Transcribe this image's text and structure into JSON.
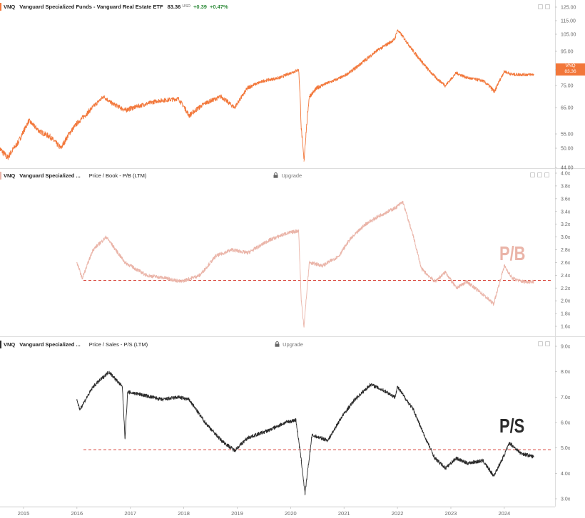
{
  "colors": {
    "price": "#f2773a",
    "pb": "#eab4a8",
    "ps": "#2a2a2a",
    "ref": "#d8463c",
    "grid": "#e8e8e8",
    "axis_text": "#666666",
    "divider": "#dddddd"
  },
  "panel1": {
    "ticker": "VNQ",
    "name": "Vanguard Specialized Funds - Vanguard Real Estate ETF",
    "price": "83.36",
    "currency": "USD",
    "change": "+0.39",
    "change_pct": "+0.47%",
    "badge_ticker": "VNQ",
    "badge_price": "83.36"
  },
  "panel2": {
    "ticker": "VNQ",
    "name": "Vanguard Specialized ...",
    "metric": "Price / Book - P/B (LTM)",
    "upgrade": "Upgrade",
    "overlay": "P/B"
  },
  "panel3": {
    "ticker": "VNQ",
    "name": "Vanguard Specialized ...",
    "metric": "Price / Sales - P/S (LTM)",
    "upgrade": "Upgrade",
    "overlay": "P/S"
  },
  "chart_data": [
    {
      "type": "line",
      "title": "Vanguard Specialized Funds - Vanguard Real Estate ETF",
      "series": [
        {
          "name": "VNQ",
          "x": [
            2014.55,
            2014.7,
            2014.9,
            2015.1,
            2015.3,
            2015.5,
            2015.7,
            2015.85,
            2016.0,
            2016.2,
            2016.5,
            2016.65,
            2016.9,
            2017.2,
            2017.5,
            2017.9,
            2018.1,
            2018.4,
            2018.7,
            2018.95,
            2019.2,
            2019.5,
            2019.8,
            2020.0,
            2020.15,
            2020.2,
            2020.25,
            2020.35,
            2020.5,
            2020.8,
            2021.0,
            2021.3,
            2021.6,
            2021.95,
            2022.0,
            2022.3,
            2022.55,
            2022.75,
            2022.9,
            2023.1,
            2023.3,
            2023.6,
            2023.82,
            2024.0,
            2024.15,
            2024.35,
            2024.55
          ],
          "y": [
            50,
            47,
            52,
            60,
            56,
            54,
            50,
            55,
            59,
            63,
            70,
            67,
            64,
            66,
            68,
            69,
            62,
            67,
            70,
            65,
            74,
            78,
            80,
            83,
            85,
            57,
            46,
            70,
            74,
            78,
            81,
            88,
            95,
            102,
            108,
            95,
            86,
            79,
            75,
            83,
            80,
            78,
            72,
            84,
            82,
            82,
            82
          ]
        }
      ],
      "ylim": [
        44,
        125
      ],
      "scale": "log",
      "y_ticks": [
        44,
        50,
        55,
        65,
        75,
        85,
        95,
        105,
        115,
        125
      ],
      "y_tick_labels": [
        "44.00",
        "50.00",
        "55.00",
        "65.00",
        "75.00",
        "85.00",
        "95.00",
        "105.00",
        "115.00",
        "125.00"
      ]
    },
    {
      "type": "line",
      "title": "Price / Book - P/B (LTM)",
      "series": [
        {
          "name": "VNQ",
          "x": [
            2016.0,
            2016.1,
            2016.3,
            2016.55,
            2016.9,
            2017.3,
            2017.7,
            2017.95,
            2018.3,
            2018.6,
            2018.9,
            2019.2,
            2019.6,
            2019.9,
            2020.15,
            2020.2,
            2020.25,
            2020.35,
            2020.6,
            2020.9,
            2021.1,
            2021.4,
            2021.7,
            2021.95,
            2022.1,
            2022.3,
            2022.45,
            2022.7,
            2022.9,
            2023.1,
            2023.3,
            2023.6,
            2023.8,
            2024.0,
            2024.15,
            2024.35,
            2024.55
          ],
          "y": [
            2.6,
            2.35,
            2.8,
            3.0,
            2.6,
            2.4,
            2.35,
            2.3,
            2.4,
            2.7,
            2.8,
            2.75,
            2.95,
            3.05,
            3.1,
            2.0,
            1.6,
            2.6,
            2.55,
            2.7,
            2.95,
            3.2,
            3.35,
            3.45,
            3.55,
            3.0,
            2.5,
            2.3,
            2.45,
            2.2,
            2.3,
            2.1,
            1.95,
            2.55,
            2.35,
            2.3,
            2.3
          ]
        }
      ],
      "reference_line": 2.32,
      "ylim": [
        1.6,
        4.0
      ],
      "y_ticks": [
        1.6,
        1.8,
        2.0,
        2.2,
        2.4,
        2.6,
        2.8,
        3.0,
        3.2,
        3.4,
        3.6,
        3.8,
        4.0
      ],
      "y_tick_labels": [
        "1.6x",
        "1.8x",
        "2.0x",
        "2.2x",
        "2.4x",
        "2.6x",
        "2.8x",
        "3.0x",
        "3.2x",
        "3.4x",
        "3.6x",
        "3.8x",
        "4.0x"
      ]
    },
    {
      "type": "line",
      "title": "Price / Sales - P/S (LTM)",
      "series": [
        {
          "name": "VNQ",
          "x": [
            2016.0,
            2016.05,
            2016.3,
            2016.6,
            2016.85,
            2016.9,
            2016.95,
            2017.2,
            2017.6,
            2017.9,
            2018.1,
            2018.4,
            2018.7,
            2018.95,
            2019.2,
            2019.6,
            2019.9,
            2020.1,
            2020.2,
            2020.27,
            2020.4,
            2020.7,
            2020.95,
            2021.2,
            2021.5,
            2021.8,
            2021.95,
            2022.0,
            2022.3,
            2022.5,
            2022.7,
            2022.9,
            2023.1,
            2023.3,
            2023.6,
            2023.8,
            2023.95,
            2024.1,
            2024.3,
            2024.55
          ],
          "y": [
            6.9,
            6.5,
            7.4,
            8.0,
            7.4,
            5.4,
            7.2,
            7.1,
            6.9,
            7.0,
            6.9,
            6.0,
            5.3,
            4.9,
            5.4,
            5.7,
            6.0,
            6.1,
            4.5,
            3.2,
            5.5,
            5.3,
            6.2,
            6.9,
            7.5,
            7.2,
            7.0,
            7.4,
            6.5,
            5.5,
            4.6,
            4.2,
            4.6,
            4.4,
            4.5,
            3.9,
            4.5,
            5.2,
            4.8,
            4.65
          ]
        }
      ],
      "reference_line": 4.93,
      "ylim": [
        3.0,
        9.0
      ],
      "y_ticks": [
        3,
        4,
        5,
        6,
        7,
        8,
        9
      ],
      "y_tick_labels": [
        "3.0x",
        "4.0x",
        "5.0x",
        "6.0x",
        "7.0x",
        "8.0x",
        "9.0x"
      ]
    }
  ],
  "x_axis": {
    "ticks": [
      2015,
      2016,
      2017,
      2018,
      2019,
      2020,
      2021,
      2022,
      2023,
      2024
    ],
    "labels": [
      "2015",
      "2016",
      "2017",
      "2018",
      "2019",
      "2020",
      "2021",
      "2022",
      "2023",
      "2024"
    ],
    "range": [
      2014.56,
      2024.95
    ]
  }
}
